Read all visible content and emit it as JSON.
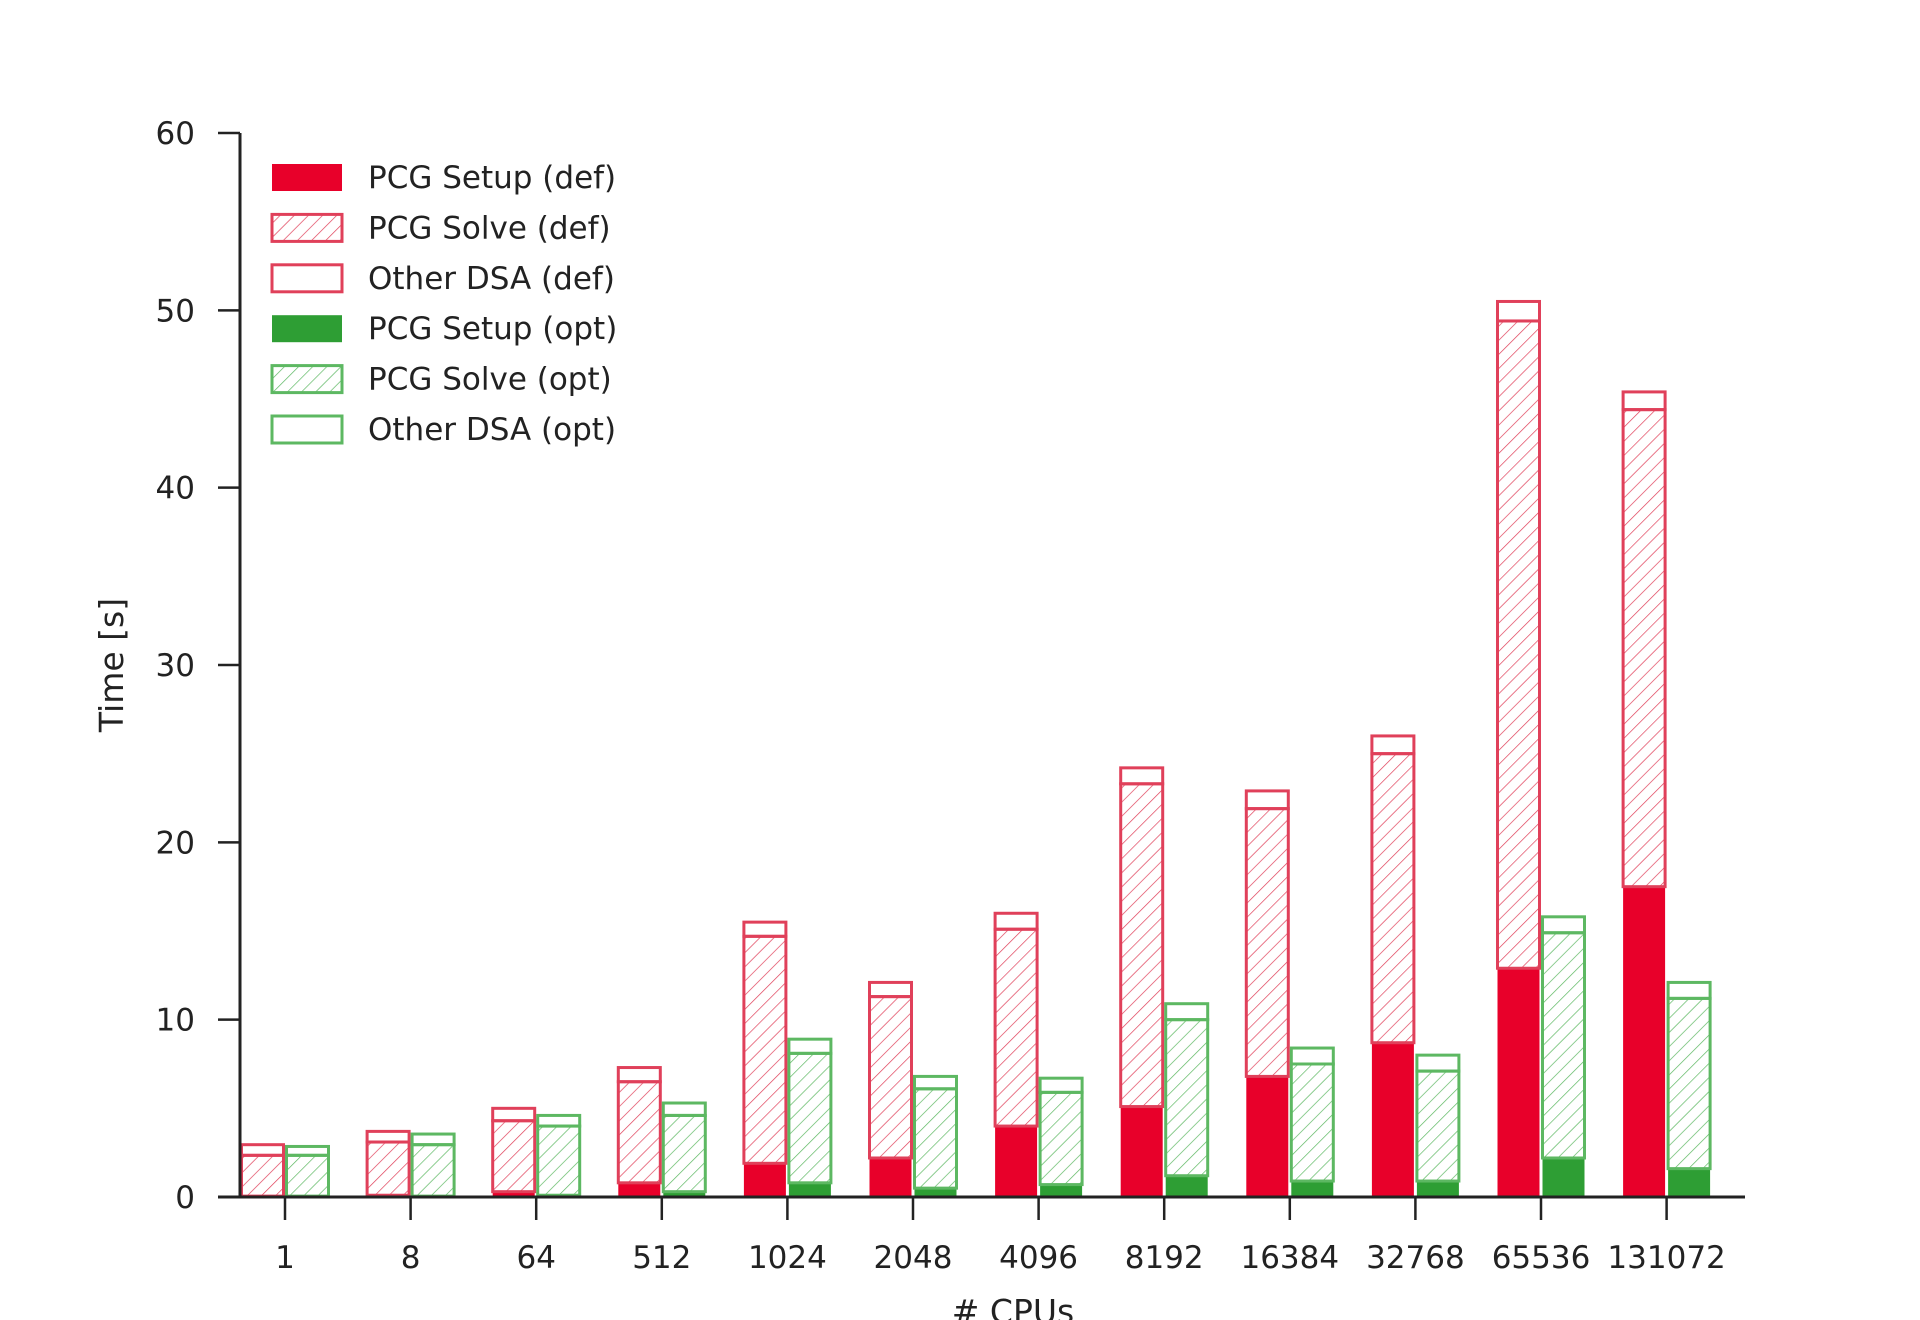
{
  "chart_data": {
    "type": "bar",
    "title": "",
    "xlabel": "# CPUs",
    "ylabel": "Time [s]",
    "ylim": [
      0,
      60
    ],
    "yticks": [
      0,
      10,
      20,
      30,
      40,
      50,
      60
    ],
    "categories": [
      "1",
      "8",
      "64",
      "512",
      "1024",
      "2048",
      "4096",
      "8192",
      "16384",
      "32768",
      "65536",
      "131072"
    ],
    "stacked": true,
    "legend_position": "top-left",
    "groups": [
      {
        "name": "def",
        "series": [
          {
            "name": "PCG Setup (def)",
            "style": "solid",
            "values": [
              0.05,
              0.1,
              0.3,
              0.8,
              1.9,
              2.2,
              4.0,
              5.1,
              6.8,
              8.7,
              12.9,
              17.5
            ]
          },
          {
            "name": "PCG Solve (def)",
            "style": "hatch",
            "values": [
              2.3,
              3.0,
              4.0,
              5.7,
              12.8,
              9.1,
              11.1,
              18.2,
              15.1,
              16.3,
              36.5,
              26.9
            ]
          },
          {
            "name": "Other DSA (def)",
            "style": "outline",
            "values": [
              0.6,
              0.6,
              0.7,
              0.8,
              0.8,
              0.8,
              0.9,
              0.9,
              1.0,
              1.0,
              1.1,
              1.0
            ]
          }
        ]
      },
      {
        "name": "opt",
        "series": [
          {
            "name": "PCG Setup (opt)",
            "style": "solid",
            "values": [
              0.05,
              0.05,
              0.1,
              0.3,
              0.8,
              0.5,
              0.7,
              1.2,
              0.9,
              0.9,
              2.2,
              1.6
            ]
          },
          {
            "name": "PCG Solve (opt)",
            "style": "hatch",
            "values": [
              2.3,
              2.9,
              3.9,
              4.3,
              7.3,
              5.6,
              5.2,
              8.8,
              6.6,
              6.2,
              12.7,
              9.6
            ]
          },
          {
            "name": "Other DSA (opt)",
            "style": "outline",
            "values": [
              0.5,
              0.6,
              0.6,
              0.7,
              0.8,
              0.7,
              0.8,
              0.9,
              0.9,
              0.9,
              0.9,
              0.9
            ]
          }
        ]
      }
    ],
    "colors": {
      "def": "#e8002a",
      "def_outline": "#e0405a",
      "opt": "#2e9e34",
      "opt_outline": "#5db862"
    },
    "legend": [
      {
        "label": "PCG Setup (def)",
        "group": "def",
        "style": "solid"
      },
      {
        "label": "PCG Solve (def)",
        "group": "def",
        "style": "hatch"
      },
      {
        "label": "Other DSA (def)",
        "group": "def",
        "style": "outline"
      },
      {
        "label": "PCG Setup (opt)",
        "group": "opt",
        "style": "solid"
      },
      {
        "label": "PCG Solve (opt)",
        "group": "opt",
        "style": "hatch"
      },
      {
        "label": "Other DSA (opt)",
        "group": "opt",
        "style": "outline"
      }
    ]
  }
}
